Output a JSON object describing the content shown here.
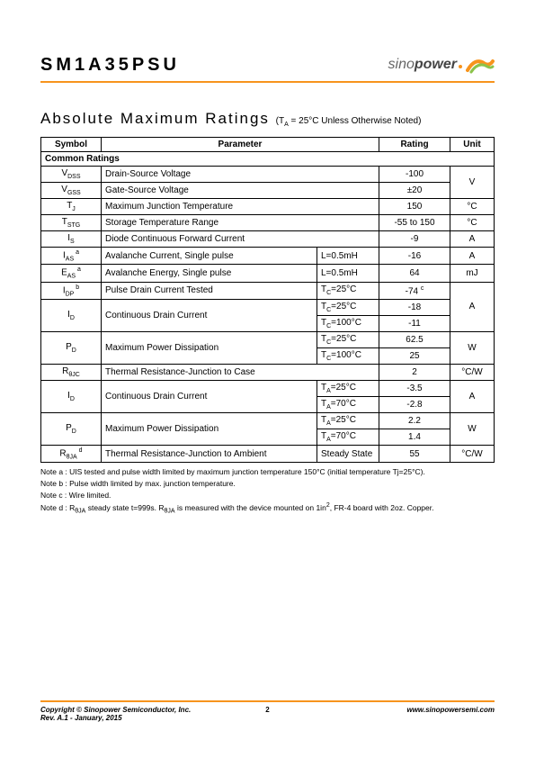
{
  "header": {
    "part_number": "SM1A35PSU",
    "logo_text_1": "sino",
    "logo_text_2": "power"
  },
  "section": {
    "title": "Absolute Maximum Ratings",
    "subtitle": "(T",
    "subtitle_sub": "A",
    "subtitle_rest": " = 25°C Unless Otherwise Noted)"
  },
  "table": {
    "headers": {
      "symbol": "Symbol",
      "parameter": "Parameter",
      "rating": "Rating",
      "unit": "Unit"
    },
    "common_ratings_label": "Common Ratings",
    "rows": [
      {
        "sym": "V",
        "sub": "DSS",
        "sup": "",
        "param": "Drain-Source Voltage",
        "cond": "",
        "rating": "-100",
        "unit": "V",
        "unit_rowspan": 2,
        "param_colspan": 2
      },
      {
        "sym": "V",
        "sub": "GSS",
        "sup": "",
        "param": "Gate-Source Voltage",
        "cond": "",
        "rating": "±20",
        "unit": "",
        "param_colspan": 2
      },
      {
        "sym": "T",
        "sub": "J",
        "sup": "",
        "param": "Maximum Junction Temperature",
        "cond": "",
        "rating": "150",
        "unit": "°C",
        "param_colspan": 2
      },
      {
        "sym": "T",
        "sub": "STG",
        "sup": "",
        "param": "Storage Temperature Range",
        "cond": "",
        "rating": "-55 to 150",
        "unit": "°C",
        "param_colspan": 2
      },
      {
        "sym": "I",
        "sub": "S",
        "sup": "",
        "param": "Diode Continuous Forward Current",
        "cond": "",
        "rating": "-9",
        "unit": "A",
        "param_colspan": 2
      },
      {
        "sym": "I",
        "sub": "AS",
        "sup": "a",
        "param": "Avalanche Current, Single pulse",
        "cond": "L=0.5mH",
        "rating": "-16",
        "unit": "A"
      },
      {
        "sym": "E",
        "sub": "AS",
        "sup": "a",
        "param": "Avalanche Energy, Single pulse",
        "cond": "L=0.5mH",
        "rating": "64",
        "unit": "mJ"
      },
      {
        "sym": "I",
        "sub": "DP",
        "sup": "b",
        "param": "Pulse Drain Current Tested",
        "cond": "T_C=25°C",
        "rating": "-74",
        "rating_sup": "c",
        "unit": "A",
        "unit_rowspan": 3
      },
      {
        "sym": "I",
        "sub": "D",
        "sup": "",
        "param": "Continuous Drain Current",
        "cond": "T_C=25°C",
        "rating": "-18",
        "sym_rowspan": 2,
        "param_rowspan": 2
      },
      {
        "cond": "T_C=100°C",
        "rating": "-11"
      },
      {
        "sym": "P",
        "sub": "D",
        "sup": "",
        "param": "Maximum Power Dissipation",
        "cond": "T_C=25°C",
        "rating": "62.5",
        "unit": "W",
        "unit_rowspan": 2,
        "sym_rowspan": 2,
        "param_rowspan": 2
      },
      {
        "cond": "T_C=100°C",
        "rating": "25"
      },
      {
        "sym": "R",
        "sub": "θJC",
        "sup": "",
        "param": "Thermal Resistance-Junction to Case",
        "cond": "",
        "rating": "2",
        "unit": "°C/W",
        "param_colspan": 2
      },
      {
        "sym": "I",
        "sub": "D",
        "sup": "",
        "param": "Continuous Drain Current",
        "cond": "T_A=25°C",
        "rating": "-3.5",
        "unit": "A",
        "unit_rowspan": 2,
        "sym_rowspan": 2,
        "param_rowspan": 2
      },
      {
        "cond": "T_A=70°C",
        "rating": "-2.8"
      },
      {
        "sym": "P",
        "sub": "D",
        "sup": "",
        "param": "Maximum Power Dissipation",
        "cond": "T_A=25°C",
        "rating": "2.2",
        "unit": "W",
        "unit_rowspan": 2,
        "sym_rowspan": 2,
        "param_rowspan": 2
      },
      {
        "cond": "T_A=70°C",
        "rating": "1.4"
      },
      {
        "sym": "R",
        "sub": "θJA",
        "sup": "d",
        "param": "Thermal Resistance-Junction to Ambient",
        "cond": "Steady State",
        "rating": "55",
        "unit": "°C/W"
      }
    ]
  },
  "notes": {
    "a": "Note a : UIS tested and pulse width limited by maximum junction temperature 150°C (initial temperature Tj=25°C).",
    "b": "Note b : Pulse width limited by max. junction temperature.",
    "c": "Note c : Wire limited.",
    "d_1": "Note d : R",
    "d_sub1": "θJA",
    "d_2": " steady state t=999s. R",
    "d_sub2": "θJA",
    "d_3": " is measured with the device mounted on 1in",
    "d_sup": "2",
    "d_4": ", FR-4 board with 2oz. Copper."
  },
  "footer": {
    "copyright": "Copyright © Sinopower Semiconductor, Inc.",
    "rev": "Rev. A.1 - January, 2015",
    "page": "2",
    "url": "www.sinopowersemi.com"
  },
  "colors": {
    "accent": "#f7941d",
    "swoosh_green": "#8bc34a",
    "swoosh_orange": "#f7941d"
  }
}
